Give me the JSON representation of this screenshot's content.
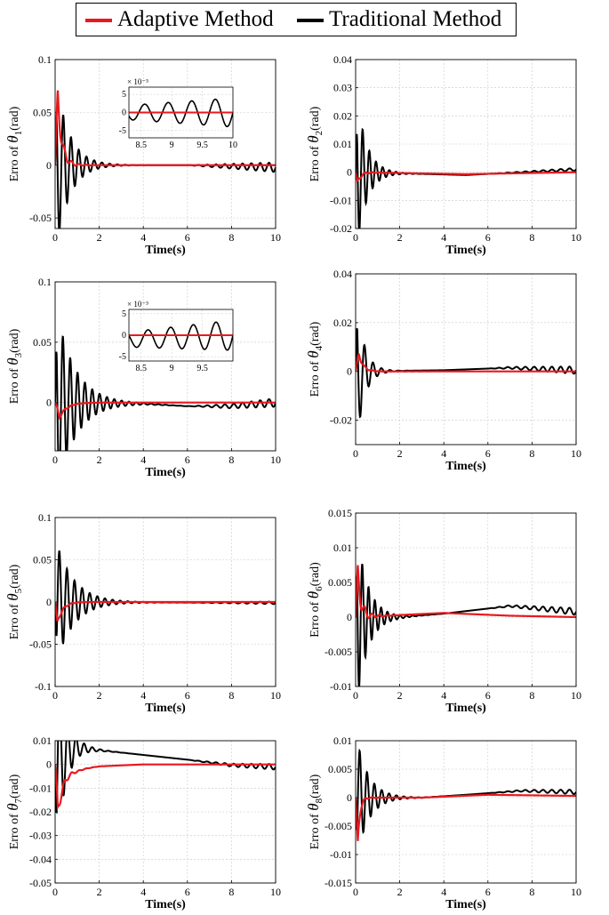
{
  "legend": {
    "items": [
      {
        "label": "Adaptive Method",
        "color": "#e8191e"
      },
      {
        "label": "Traditional Method",
        "color": "#000000"
      }
    ]
  },
  "chart_data": [
    {
      "type": "line",
      "xlabel": "Time(s)",
      "ylabel_prefix": "Erro of ",
      "ylabel_symbol": "θ",
      "ylabel_sub": "1",
      "ylabel_suffix": "(rad)",
      "xlim": [
        0,
        10
      ],
      "ylim": [
        -0.06,
        0.1
      ],
      "xticks": [
        0,
        2,
        4,
        6,
        8,
        10
      ],
      "xtick_labels": [
        "0",
        "2",
        "4",
        "6",
        "8",
        "10"
      ],
      "yticks": [
        -0.05,
        0,
        0.05,
        0.1
      ],
      "ytick_labels": [
        "-0.05",
        "0",
        "0.05",
        "0.1"
      ],
      "grid": true,
      "series": [
        {
          "name": "Traditional Method",
          "color": "#000000",
          "fn": "osc",
          "A": 0.088,
          "f": 2.85,
          "tau": 0.6,
          "trend": [
            [
              0,
              0
            ],
            [
              6,
              0
            ],
            [
              10,
              -0.002
            ]
          ],
          "tail": 0.0045
        },
        {
          "name": "Adaptive Method",
          "color": "#e8191e",
          "fn": "pulse",
          "peak": 0.065,
          "tpk": 0.12,
          "tau": 0.18,
          "ripple": 0.012,
          "tail": 0
        }
      ],
      "inset": {
        "xlim": [
          8.3,
          10
        ],
        "ylim": [
          -7,
          7
        ],
        "xticks": [
          8.5,
          9,
          9.5,
          10
        ],
        "xtick_labels": [
          "8.5",
          "9",
          "9.5",
          "10"
        ],
        "yticks": [
          -5,
          0,
          5
        ],
        "ytick_labels": [
          "-5",
          "0",
          "5"
        ],
        "exponent": "× 10⁻³",
        "series": [
          {
            "color": "#000000",
            "A": 4,
            "f": 2.6
          },
          {
            "color": "#e8191e",
            "A": 0,
            "f": 0
          }
        ]
      }
    },
    {
      "type": "line",
      "xlabel": "Time(s)",
      "ylabel_prefix": "Erro of ",
      "ylabel_symbol": "θ",
      "ylabel_sub": "2",
      "ylabel_suffix": "(rad)",
      "xlim": [
        0,
        10
      ],
      "ylim": [
        -0.02,
        0.04
      ],
      "xticks": [
        0,
        2,
        4,
        6,
        8,
        10
      ],
      "xtick_labels": [
        "0",
        "2",
        "4",
        "6",
        "8",
        "10"
      ],
      "yticks": [
        -0.02,
        -0.01,
        0,
        0.01,
        0.02,
        0.03,
        0.04
      ],
      "ytick_labels": [
        "-0.02",
        "-0.01",
        "0",
        "0.01",
        "0.02",
        "0.03",
        "0.04"
      ],
      "grid": true,
      "series": [
        {
          "name": "Traditional Method",
          "color": "#000000",
          "fn": "osc",
          "A": 0.031,
          "f": 3.3,
          "tau": 0.45,
          "trend": [
            [
              0,
              0
            ],
            [
              2.5,
              -0.0005
            ],
            [
              5,
              -0.001
            ],
            [
              7.5,
              0
            ],
            [
              10,
              0.001
            ]
          ],
          "tail": 0.0005
        },
        {
          "name": "Adaptive Method",
          "color": "#e8191e",
          "fn": "pulse",
          "peak": -0.004,
          "tpk": 0.08,
          "tau": 0.15,
          "ripple": 0.001,
          "trend": [
            [
              0,
              0
            ],
            [
              5,
              -0.0007
            ],
            [
              10,
              0
            ]
          ],
          "tail": 0
        }
      ]
    },
    {
      "type": "line",
      "xlabel": "Time(s)",
      "ylabel_prefix": "Erro of ",
      "ylabel_symbol": "θ",
      "ylabel_sub": "3",
      "ylabel_suffix": "(rad)",
      "xlim": [
        0,
        10
      ],
      "ylim": [
        -0.04,
        0.1
      ],
      "xticks": [
        0,
        2,
        4,
        6,
        8,
        10
      ],
      "xtick_labels": [
        "0",
        "2",
        "4",
        "6",
        "8",
        "10"
      ],
      "yticks": [
        0,
        0.05,
        0.1
      ],
      "ytick_labels": [
        "0",
        "0.05",
        "0.1"
      ],
      "grid": true,
      "series": [
        {
          "name": "Traditional Method",
          "color": "#000000",
          "fn": "osc",
          "A": 0.083,
          "f": 3.0,
          "tau": 0.85,
          "trend": [
            [
              0,
              0
            ],
            [
              4,
              -0.001
            ],
            [
              6,
              -0.003
            ],
            [
              8,
              -0.003
            ],
            [
              10,
              0
            ]
          ],
          "tail": 0.0035
        },
        {
          "name": "Adaptive Method",
          "color": "#e8191e",
          "fn": "pulse",
          "peak": -0.012,
          "tpk": 0.2,
          "tau": 0.35,
          "ripple": 0.002,
          "tail": 0
        }
      ],
      "inset": {
        "xlim": [
          8.3,
          10
        ],
        "ylim": [
          -6,
          6
        ],
        "xticks": [
          8.5,
          9,
          9.5
        ],
        "xtick_labels": [
          "8.5",
          "9",
          "9.5"
        ],
        "yticks": [
          -5,
          0,
          5
        ],
        "ytick_labels": [
          "-5",
          "0",
          "5"
        ],
        "exponent": "× 10⁻³",
        "series": [
          {
            "color": "#000000",
            "A": 3.5,
            "f": 2.7,
            "base": -2
          },
          {
            "color": "#e8191e",
            "A": 0,
            "f": 0
          }
        ]
      }
    },
    {
      "type": "line",
      "xlabel": "Time(s)",
      "ylabel_prefix": "Erro of ",
      "ylabel_symbol": "θ",
      "ylabel_sub": "4",
      "ylabel_suffix": "(rad)",
      "xlim": [
        0,
        10
      ],
      "ylim": [
        -0.03,
        0.04
      ],
      "xticks": [
        0,
        2,
        4,
        6,
        8,
        10
      ],
      "xtick_labels": [
        "0",
        "2",
        "4",
        "6",
        "8",
        "10"
      ],
      "yticks": [
        -0.02,
        0,
        0.02,
        0.04
      ],
      "ytick_labels": [
        "-0.02",
        "0",
        "0.02",
        "0.04"
      ],
      "grid": true,
      "series": [
        {
          "name": "Traditional Method",
          "color": "#000000",
          "fn": "osc",
          "A": 0.034,
          "f": 2.6,
          "tau": 0.35,
          "trend": [
            [
              0,
              0
            ],
            [
              4,
              0.0005
            ],
            [
              7,
              0.0015
            ],
            [
              10,
              0.0005
            ]
          ],
          "tail": 0.0015
        },
        {
          "name": "Adaptive Method",
          "color": "#e8191e",
          "fn": "pulse",
          "peak": 0.007,
          "tpk": 0.15,
          "tau": 0.2,
          "ripple": 0.001,
          "tail": 0
        }
      ]
    },
    {
      "type": "line",
      "xlabel": "Time(s)",
      "ylabel_prefix": "Erro of ",
      "ylabel_symbol": "θ",
      "ylabel_sub": "5",
      "ylabel_suffix": "(rad)",
      "xlim": [
        0,
        10
      ],
      "ylim": [
        -0.1,
        0.1
      ],
      "xticks": [
        0,
        2,
        4,
        6,
        8,
        10
      ],
      "xtick_labels": [
        "0",
        "2",
        "4",
        "6",
        "8",
        "10"
      ],
      "yticks": [
        -0.1,
        -0.05,
        0,
        0.05,
        0.1
      ],
      "ytick_labels": [
        "-0.1",
        "-0.05",
        "0",
        "0.05",
        "0.1"
      ],
      "grid": true,
      "series": [
        {
          "name": "Traditional Method",
          "color": "#000000",
          "fn": "osc",
          "A": -0.077,
          "f": 2.9,
          "tau": 0.8,
          "trend": [
            [
              0,
              0
            ],
            [
              10,
              -0.001
            ]
          ],
          "tail": 0.0015
        },
        {
          "name": "Adaptive Method",
          "color": "#e8191e",
          "fn": "pulse",
          "peak": -0.025,
          "tpk": 0.1,
          "tau": 0.25,
          "ripple": 0.003,
          "tail": 0
        }
      ]
    },
    {
      "type": "line",
      "xlabel": "Time(s)",
      "ylabel_prefix": "Erro of ",
      "ylabel_symbol": "θ",
      "ylabel_sub": "6",
      "ylabel_suffix": "(rad)",
      "xlim": [
        0,
        10
      ],
      "ylim": [
        -0.01,
        0.015
      ],
      "xticks": [
        0,
        2,
        4,
        6,
        8,
        10
      ],
      "xtick_labels": [
        "0",
        "2",
        "4",
        "6",
        "8",
        "10"
      ],
      "yticks": [
        -0.01,
        -0.005,
        0,
        0.005,
        0.01,
        0.015
      ],
      "ytick_labels": [
        "-0.01",
        "-0.005",
        "0",
        "0.005",
        "0.01",
        "0.015"
      ],
      "grid": true,
      "series": [
        {
          "name": "Traditional Method",
          "color": "#000000",
          "fn": "osc",
          "A": 0.014,
          "f": 3.5,
          "tau": 0.5,
          "trend": [
            [
              0,
              0
            ],
            [
              2,
              0
            ],
            [
              4,
              0.0005
            ],
            [
              7,
              0.0016
            ],
            [
              10,
              0.0008
            ]
          ],
          "tail": 0.0005
        },
        {
          "name": "Adaptive Method",
          "color": "#e8191e",
          "fn": "pulse",
          "peak": 0.006,
          "tpk": 0.1,
          "tau": 0.15,
          "ripple": 0.002,
          "trend": [
            [
              0,
              0
            ],
            [
              4,
              0.0006
            ],
            [
              7,
              0.0002
            ],
            [
              10,
              0
            ]
          ],
          "tail": 0
        }
      ]
    },
    {
      "type": "line",
      "xlabel": "Time(s)",
      "ylabel_prefix": "Erro of ",
      "ylabel_symbol": "θ",
      "ylabel_sub": "7",
      "ylabel_suffix": "(rad)",
      "xlim": [
        0,
        10
      ],
      "ylim": [
        -0.05,
        0.01
      ],
      "xticks": [
        0,
        2,
        4,
        6,
        8,
        10
      ],
      "xtick_labels": [
        "0",
        "2",
        "4",
        "6",
        "8",
        "10"
      ],
      "yticks": [
        -0.05,
        -0.04,
        -0.03,
        -0.02,
        -0.01,
        0,
        0.01
      ],
      "ytick_labels": [
        "-0.05",
        "-0.04",
        "-0.03",
        "-0.02",
        "-0.01",
        "0",
        "0.01"
      ],
      "grid": true,
      "series": [
        {
          "name": "Traditional Method",
          "color": "#000000",
          "fn": "osc",
          "A": -0.04,
          "f": 2.7,
          "tau": 0.45,
          "trend": [
            [
              0,
              0
            ],
            [
              0.5,
              0.005
            ],
            [
              1,
              0.007
            ],
            [
              2,
              0.006
            ],
            [
              4,
              0.004
            ],
            [
              6,
              0.002
            ],
            [
              8,
              -0.0003
            ],
            [
              10,
              -0.001
            ]
          ],
          "tail": 0.0012
        },
        {
          "name": "Adaptive Method",
          "color": "#e8191e",
          "fn": "pulse",
          "peak": -0.02,
          "tpk": 0.12,
          "tau": 0.3,
          "ripple": 0.004,
          "trend": [
            [
              0,
              0
            ],
            [
              1,
              -0.002
            ],
            [
              2,
              -0.0008
            ],
            [
              4,
              0
            ],
            [
              10,
              0
            ]
          ],
          "tail": 0
        }
      ]
    },
    {
      "type": "line",
      "xlabel": "Time(s)",
      "ylabel_prefix": "Erro of ",
      "ylabel_symbol": "θ",
      "ylabel_sub": "8",
      "ylabel_suffix": "(rad)",
      "xlim": [
        0,
        10
      ],
      "ylim": [
        -0.015,
        0.01
      ],
      "xticks": [
        0,
        2,
        4,
        6,
        8,
        10
      ],
      "xtick_labels": [
        "0",
        "2",
        "4",
        "6",
        "8",
        "10"
      ],
      "yticks": [
        -0.015,
        -0.01,
        -0.005,
        0,
        0.005,
        0.01
      ],
      "ytick_labels": [
        "-0.015",
        "-0.01",
        "-0.005",
        "0",
        "0.005",
        "0.01"
      ],
      "grid": true,
      "series": [
        {
          "name": "Traditional Method",
          "color": "#000000",
          "fn": "osc",
          "A": -0.0115,
          "f": 3.0,
          "tau": 0.55,
          "trend": [
            [
              0,
              0
            ],
            [
              3,
              0
            ],
            [
              5,
              0.0005
            ],
            [
              7.5,
              0.0012
            ],
            [
              10,
              0.001
            ]
          ],
          "tail": 0.0004
        },
        {
          "name": "Adaptive Method",
          "color": "#e8191e",
          "fn": "pulse",
          "peak": -0.008,
          "tpk": 0.1,
          "tau": 0.1,
          "ripple": 0.0005,
          "trend": [
            [
              0,
              0
            ],
            [
              3,
              0
            ],
            [
              6,
              0.0005
            ],
            [
              10,
              0.0003
            ]
          ],
          "tail": 0
        }
      ]
    }
  ]
}
